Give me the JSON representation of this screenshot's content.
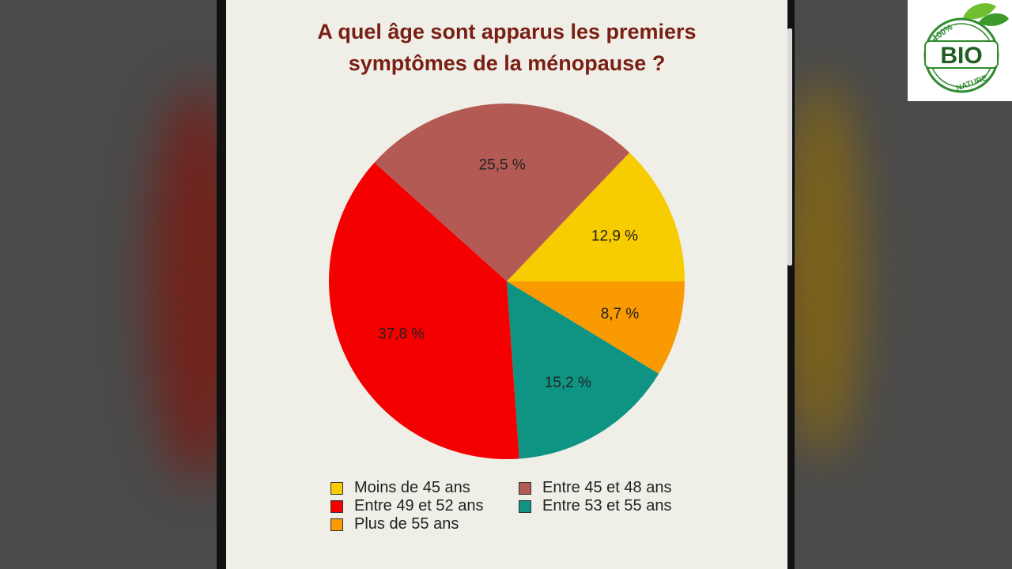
{
  "title_lines": [
    "A quel âge sont apparus les premiers",
    "symptômes de la ménopause ?"
  ],
  "logo": {
    "badge_text": "BIO",
    "top_text": "100%",
    "bottom_text": "NATURE"
  },
  "chart_data": {
    "type": "pie",
    "title": "A quel âge sont apparus les premiers symptômes de la ménopause ?",
    "slices": [
      {
        "label": "Moins de 45 ans",
        "value": 12.9,
        "display": "12,9 %",
        "color": "#f7cc00"
      },
      {
        "label": "Entre 45 et 48 ans",
        "value": 25.5,
        "display": "25,5 %",
        "color": "#b35a54"
      },
      {
        "label": "Entre 49 et 52 ans",
        "value": 37.8,
        "display": "37,8 %",
        "color": "#f40000"
      },
      {
        "label": "Entre 53 et 55 ans",
        "value": 15.2,
        "display": "15,2 %",
        "color": "#0f9484"
      },
      {
        "label": "Plus de 55 ans",
        "value": 8.7,
        "display": "8,7 %",
        "color": "#f99a00"
      }
    ],
    "legend": {
      "placement": "bottom",
      "columns": 2
    }
  }
}
